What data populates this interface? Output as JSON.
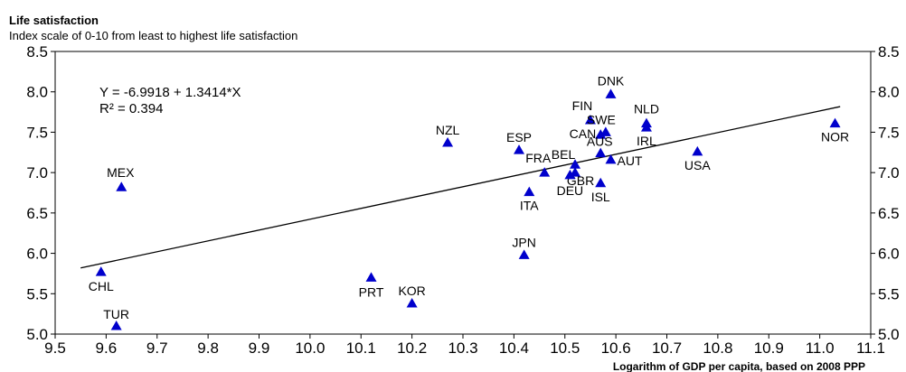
{
  "chart_data": {
    "type": "scatter",
    "title": "Life satisfaction",
    "subtitle": "Index scale of 0-10 from least to highest life satisfaction",
    "xlabel": "Logarithm of GDP per capita, based on 2008 PPP",
    "ylabel": "",
    "xlim": [
      9.5,
      11.1
    ],
    "ylim": [
      5.0,
      8.5
    ],
    "xticks": [
      "9.5",
      "9.6",
      "9.7",
      "9.8",
      "9.9",
      "10.0",
      "10.1",
      "10.2",
      "10.3",
      "10.4",
      "10.5",
      "10.6",
      "10.7",
      "10.8",
      "10.9",
      "11.0",
      "11.1"
    ],
    "yticks": [
      "5.0",
      "5.5",
      "6.0",
      "6.5",
      "7.0",
      "7.5",
      "8.0",
      "8.5"
    ],
    "marker_color": "#0000CC",
    "points": [
      {
        "label": "DNK",
        "x": 10.59,
        "y": 7.97
      },
      {
        "label": "NLD",
        "x": 10.66,
        "y": 7.61
      },
      {
        "label": "FIN",
        "x": 10.55,
        "y": 7.65
      },
      {
        "label": "SWE",
        "x": 10.58,
        "y": 7.5
      },
      {
        "label": "CAN",
        "x": 10.57,
        "y": 7.47
      },
      {
        "label": "IRL",
        "x": 10.66,
        "y": 7.56
      },
      {
        "label": "NOR",
        "x": 11.03,
        "y": 7.61
      },
      {
        "label": "NZL",
        "x": 10.27,
        "y": 7.37
      },
      {
        "label": "ESP",
        "x": 10.41,
        "y": 7.28
      },
      {
        "label": "AUS",
        "x": 10.57,
        "y": 7.24
      },
      {
        "label": "USA",
        "x": 10.76,
        "y": 7.26
      },
      {
        "label": "BEL",
        "x": 10.52,
        "y": 7.1
      },
      {
        "label": "FRA",
        "x": 10.46,
        "y": 7.0
      },
      {
        "label": "AUT",
        "x": 10.59,
        "y": 7.16
      },
      {
        "label": "GBR",
        "x": 10.52,
        "y": 7.0
      },
      {
        "label": "DEU",
        "x": 10.51,
        "y": 6.97
      },
      {
        "label": "ISL",
        "x": 10.57,
        "y": 6.87
      },
      {
        "label": "ITA",
        "x": 10.43,
        "y": 6.76
      },
      {
        "label": "MEX",
        "x": 9.63,
        "y": 6.82
      },
      {
        "label": "JPN",
        "x": 10.42,
        "y": 5.98
      },
      {
        "label": "CHL",
        "x": 9.59,
        "y": 5.77
      },
      {
        "label": "PRT",
        "x": 10.12,
        "y": 5.7
      },
      {
        "label": "KOR",
        "x": 10.2,
        "y": 5.38
      },
      {
        "label": "TUR",
        "x": 9.62,
        "y": 5.1
      }
    ],
    "trendline": {
      "intercept": -6.9918,
      "slope": 1.3414,
      "equation": "Y = -6.9918 + 1.3414*X",
      "r_squared": "R² = 0.394"
    }
  }
}
